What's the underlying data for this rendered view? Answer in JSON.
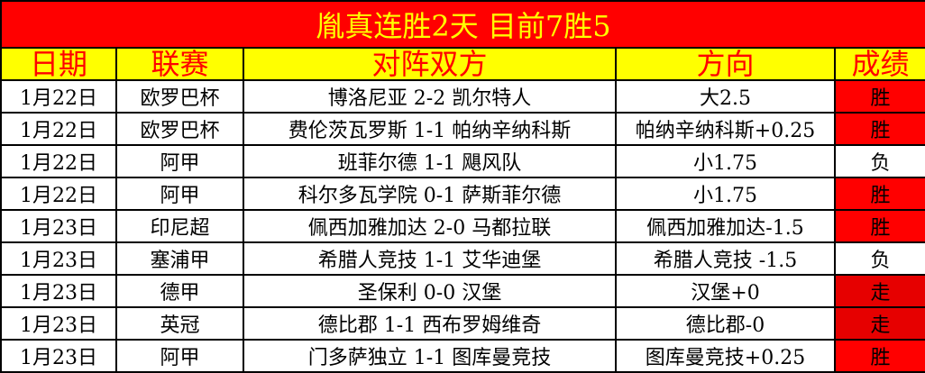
{
  "title": "胤真连胜2天  目前7胜5",
  "headers": [
    "日期",
    "联赛",
    "对阵双方",
    "方向",
    "成绩"
  ],
  "colors": {
    "title_bg": "#ff0000",
    "title_text": "#ffff00",
    "header_bg": "#ffff00",
    "header_text": "#ff0000",
    "win_bg": "#ff0000",
    "push_bg": "#e60000"
  },
  "rows": [
    {
      "date": "1月22日",
      "league": "欧罗巴杯",
      "match": "博洛尼亚 2-2 凯尔特人",
      "pick": "大2.5",
      "result": "胜",
      "type": "win"
    },
    {
      "date": "1月22日",
      "league": "欧罗巴杯",
      "match": "费伦茨瓦罗斯 1-1 帕纳辛纳科斯",
      "pick": "帕纳辛纳科斯+0.25",
      "result": "胜",
      "type": "win"
    },
    {
      "date": "1月22日",
      "league": "阿甲",
      "match": "班菲尔德 1-1 飓风队",
      "pick": "小1.75",
      "result": "负",
      "type": "loss"
    },
    {
      "date": "1月22日",
      "league": "阿甲",
      "match": "科尔多瓦学院 0-1 萨斯菲尔德",
      "pick": "小1.75",
      "result": "胜",
      "type": "win"
    },
    {
      "date": "1月23日",
      "league": "印尼超",
      "match": "佩西加雅加达 2-0 马都拉联",
      "pick": "佩西加雅加达-1.5",
      "result": "胜",
      "type": "win"
    },
    {
      "date": "1月23日",
      "league": "塞浦甲",
      "match": "希腊人竞技 1-1 艾华迪堡",
      "pick": "希腊人竞技 -1.5",
      "result": "负",
      "type": "loss"
    },
    {
      "date": "1月23日",
      "league": "德甲",
      "match": "圣保利 0-0 汉堡",
      "pick": "汉堡+0",
      "result": "走",
      "type": "push"
    },
    {
      "date": "1月23日",
      "league": "英冠",
      "match": "德比郡 1-1 西布罗姆维奇",
      "pick": "德比郡-0",
      "result": "走",
      "type": "push"
    },
    {
      "date": "1月23日",
      "league": "阿甲",
      "match": "门多萨独立 1-1 图库曼竞技",
      "pick": "图库曼竞技+0.25",
      "result": "胜",
      "type": "win"
    }
  ]
}
